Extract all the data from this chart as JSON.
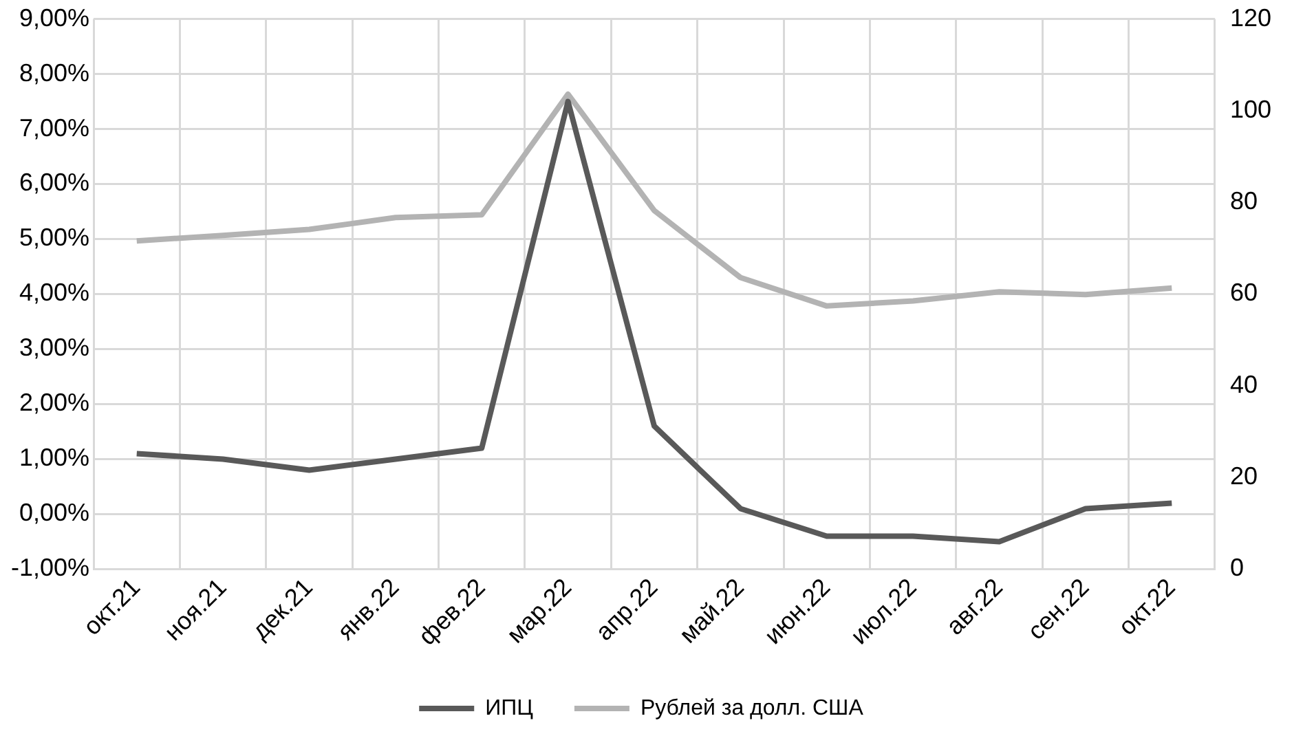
{
  "chart_data": {
    "type": "line",
    "categories": [
      "окт.21",
      "ноя.21",
      "дек.21",
      "янв.22",
      "фев.22",
      "мар.22",
      "апр.22",
      "май.22",
      "июн.22",
      "июл.22",
      "авг.22",
      "сен.22",
      "окт.22"
    ],
    "series": [
      {
        "name": "ИПЦ",
        "color": "#595959",
        "values": [
          1.1,
          1.0,
          0.8,
          1.0,
          1.2,
          7.5,
          1.6,
          0.1,
          -0.4,
          -0.4,
          -0.5,
          0.1,
          0.2
        ]
      },
      {
        "name": "Рублей за долл. США",
        "color": "#b3b3b3",
        "axis": "y2",
        "values": [
          71.6,
          72.8,
          74.1,
          76.7,
          77.3,
          103.6,
          78.2,
          63.6,
          57.4,
          58.5,
          60.5,
          59.9,
          61.3
        ]
      }
    ],
    "ylim": [
      -1,
      9
    ],
    "yticks": [
      {
        "value": -1,
        "label": "-1,00%"
      },
      {
        "value": 0,
        "label": "0,00%"
      },
      {
        "value": 1,
        "label": "1,00%"
      },
      {
        "value": 2,
        "label": "2,00%"
      },
      {
        "value": 3,
        "label": "3,00%"
      },
      {
        "value": 4,
        "label": "4,00%"
      },
      {
        "value": 5,
        "label": "5,00%"
      },
      {
        "value": 6,
        "label": "6,00%"
      },
      {
        "value": 7,
        "label": "7,00%"
      },
      {
        "value": 8,
        "label": "8,00%"
      },
      {
        "value": 9,
        "label": "9,00%"
      }
    ],
    "y2lim": [
      0,
      120
    ],
    "y2ticks": [
      0,
      20,
      40,
      60,
      80,
      100,
      120
    ],
    "grid": true,
    "legend": "bottom",
    "marker": "none",
    "line_style": "solid"
  }
}
